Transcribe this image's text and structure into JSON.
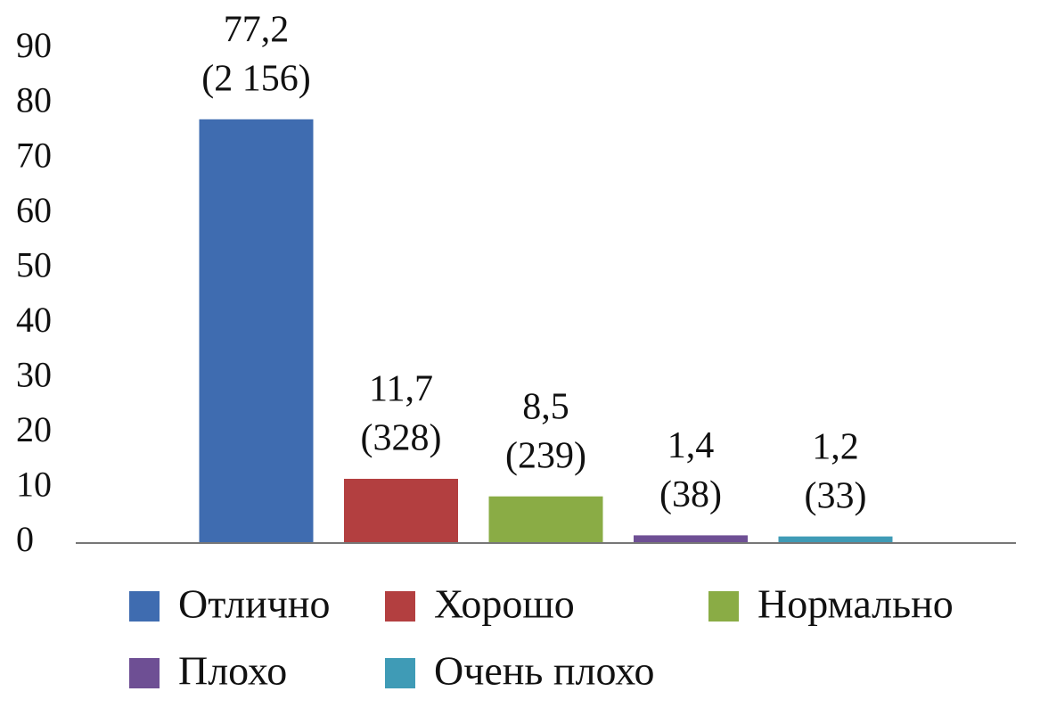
{
  "chart_data": {
    "type": "bar",
    "series": [
      {
        "name": "Отлично",
        "color": "#3f6cb0",
        "values": [
          77.2
        ],
        "value_labels": [
          "77,2"
        ],
        "count_labels": [
          "(2 156)"
        ]
      },
      {
        "name": "Хорошо",
        "color": "#b33f40",
        "values": [
          11.7
        ],
        "value_labels": [
          "11,7"
        ],
        "count_labels": [
          "(328)"
        ]
      },
      {
        "name": "Нормально",
        "color": "#8aac45",
        "values": [
          8.5
        ],
        "value_labels": [
          "8,5"
        ],
        "count_labels": [
          "(239)"
        ]
      },
      {
        "name": "Плохо",
        "color": "#6e4f94",
        "values": [
          1.4
        ],
        "value_labels": [
          "1,4"
        ],
        "count_labels": [
          "(38)"
        ]
      },
      {
        "name": "Очень плохо",
        "color": "#3f9bb6",
        "values": [
          1.2
        ],
        "value_labels": [
          "1,2"
        ],
        "count_labels": [
          "(33)"
        ]
      }
    ],
    "ylim": [
      0,
      90
    ],
    "yticks": [
      0,
      10,
      20,
      30,
      40,
      50,
      60,
      70,
      80,
      90
    ],
    "grid": false,
    "legend": "bottom"
  }
}
